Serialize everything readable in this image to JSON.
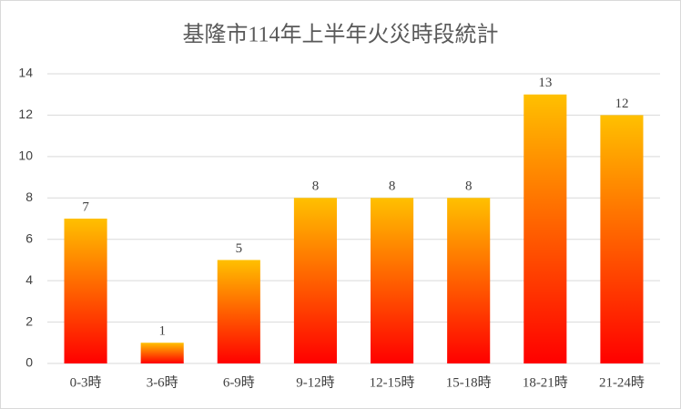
{
  "chart_data": {
    "type": "bar",
    "title": "基隆市114年上半年火災時段統計",
    "categories": [
      "0-3時",
      "3-6時",
      "6-9時",
      "9-12時",
      "12-15時",
      "15-18時",
      "18-21時",
      "21-24時"
    ],
    "values": [
      7,
      1,
      5,
      8,
      8,
      8,
      13,
      12
    ],
    "gradient": {
      "top": "#ffc000",
      "bottom": "#ff0000"
    },
    "ylim": [
      0,
      14
    ],
    "yticks": [
      0,
      2,
      4,
      6,
      8,
      10,
      12,
      14
    ],
    "grid": true
  }
}
